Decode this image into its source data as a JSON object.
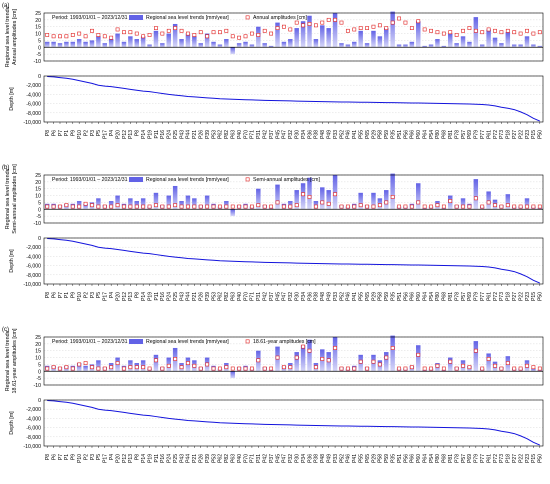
{
  "stations": [
    "P8",
    "P6",
    "P7",
    "P1",
    "P9",
    "P10",
    "P2",
    "P3",
    "P5",
    "P17",
    "P4",
    "P20",
    "P12",
    "P13",
    "P8",
    "P14",
    "P19",
    "P11",
    "P16",
    "P24",
    "P25",
    "P43",
    "P44",
    "P21",
    "P26",
    "P39",
    "P53",
    "P62",
    "P82",
    "P63",
    "P40",
    "P70",
    "P71",
    "P31",
    "P42",
    "P37",
    "P45",
    "P47",
    "P32",
    "P30",
    "P34",
    "P36",
    "P38",
    "P48",
    "P49",
    "P33",
    "P52",
    "P46",
    "P41",
    "P55",
    "P65",
    "P29",
    "P58",
    "P59",
    "P35",
    "P51",
    "P56",
    "P66",
    "P60",
    "P64",
    "P54",
    "P80",
    "P68",
    "P81",
    "P78",
    "P57",
    "P69",
    "P79",
    "P77",
    "P61",
    "P72",
    "P73",
    "P18",
    "P27",
    "P22",
    "P23",
    "P15",
    "P50"
  ],
  "depth_ticks": [
    "0",
    "-2,000",
    "-4,000",
    "-6,000",
    "-8,000",
    "-10,000"
  ],
  "depth_ylabel": "Depth [m]",
  "trend_yticks": [
    "25",
    "20",
    "15",
    "10",
    "5",
    "0",
    "-5",
    "-10"
  ],
  "ylabel_main": "Regional sea level trends",
  "period_text": "Period: 1993/01/01 – 2023/12/31",
  "legend_trend": "Regional sea level trends [mm/year]",
  "panels": [
    {
      "id": "a",
      "tag": "(a)",
      "ylabel2": "Annual amplitudes [cm]",
      "legend_amp": "Annual amplitudes [cm]"
    },
    {
      "id": "b",
      "tag": "(b)",
      "ylabel2": "Semi-annual amplitudes [cm]",
      "legend_amp": "Semi-annual amplitudes [cm]"
    },
    {
      "id": "c",
      "tag": "(c)",
      "ylabel2": "18.61-year amplitudes [cm]",
      "legend_amp": "18.61-year amplitudes [cm]"
    }
  ],
  "colors": {
    "bar_top": "#6262e6",
    "bar_bottom": "#d8d8f8",
    "marker": "#e02020",
    "depth_line": "#1414dc",
    "axis": "#000000",
    "grid": "#cfcfcf"
  },
  "chart_data": [
    {
      "type": "bar",
      "title": "(a)",
      "categories_ref": "stations",
      "series": [
        {
          "name": "Regional sea level trends [mm/year]",
          "values": [
            4,
            4,
            3,
            4,
            4,
            6,
            4,
            5,
            8,
            3,
            6,
            10,
            4,
            8,
            6,
            8,
            2,
            12,
            3,
            10,
            17,
            6,
            10,
            8,
            3,
            10,
            4,
            2,
            6,
            -5,
            3,
            4,
            2,
            15,
            3,
            1,
            18,
            4,
            6,
            14,
            19,
            23,
            6,
            16,
            14,
            25,
            3,
            2,
            4,
            12,
            3,
            12,
            8,
            14,
            26,
            2,
            2,
            4,
            19,
            1,
            2,
            6,
            1,
            10,
            3,
            8,
            4,
            22,
            2,
            13,
            7,
            3,
            11,
            2,
            2,
            8,
            2,
            1
          ]
        },
        {
          "name": "Annual amplitudes [cm]",
          "values": [
            9,
            8,
            8,
            8,
            9,
            10,
            8,
            12,
            9,
            8,
            7,
            13,
            11,
            11,
            10,
            8,
            9,
            14,
            10,
            12,
            14,
            12,
            10,
            9,
            11,
            8,
            11,
            11,
            12,
            8,
            7,
            8,
            10,
            9,
            12,
            10,
            14,
            15,
            13,
            18,
            16,
            17,
            16,
            18,
            20,
            20,
            18,
            12,
            13,
            14,
            14,
            15,
            16,
            14,
            18,
            21,
            18,
            14,
            19,
            13,
            12,
            11,
            10,
            11,
            9,
            12,
            14,
            12,
            11,
            13,
            12,
            11,
            12,
            11,
            10,
            12,
            10,
            11
          ]
        }
      ],
      "ylim": [
        -10,
        25
      ]
    },
    {
      "type": "bar",
      "title": "(b)",
      "categories_ref": "stations",
      "series": [
        {
          "name": "Regional sea level trends [mm/year]",
          "values": [
            4,
            4,
            3,
            4,
            4,
            6,
            4,
            5,
            8,
            3,
            6,
            10,
            4,
            8,
            6,
            8,
            2,
            12,
            3,
            10,
            17,
            6,
            10,
            8,
            3,
            10,
            4,
            2,
            6,
            -5,
            3,
            4,
            2,
            15,
            3,
            1,
            18,
            4,
            6,
            14,
            19,
            23,
            6,
            16,
            14,
            25,
            3,
            2,
            4,
            12,
            3,
            12,
            8,
            14,
            26,
            2,
            2,
            4,
            19,
            1,
            2,
            6,
            1,
            10,
            3,
            8,
            4,
            22,
            2,
            13,
            7,
            3,
            11,
            2,
            2,
            8,
            2,
            1
          ]
        },
        {
          "name": "Semi-annual amplitudes [cm]",
          "values": [
            2,
            2,
            2,
            3,
            2,
            2,
            4,
            3,
            2,
            2,
            2,
            3,
            2,
            2,
            2,
            2,
            2,
            3,
            2,
            2,
            3,
            2,
            2,
            2,
            2,
            2,
            2,
            2,
            2,
            2,
            2,
            2,
            2,
            3,
            2,
            2,
            5,
            2,
            2,
            3,
            11,
            9,
            2,
            5,
            4,
            11,
            2,
            2,
            2,
            3,
            2,
            2,
            3,
            5,
            9,
            2,
            2,
            2,
            5,
            2,
            2,
            3,
            2,
            6,
            2,
            2,
            2,
            8,
            2,
            5,
            3,
            2,
            3,
            2,
            2,
            2,
            2,
            2
          ]
        }
      ],
      "ylim": [
        -10,
        25
      ]
    },
    {
      "type": "bar",
      "title": "(c)",
      "categories_ref": "stations",
      "series": [
        {
          "name": "Regional sea level trends [mm/year]",
          "values": [
            4,
            4,
            3,
            4,
            4,
            6,
            4,
            5,
            8,
            3,
            6,
            10,
            4,
            8,
            6,
            8,
            2,
            12,
            3,
            10,
            17,
            6,
            10,
            8,
            3,
            10,
            4,
            2,
            6,
            -5,
            3,
            4,
            2,
            15,
            3,
            1,
            18,
            4,
            6,
            14,
            19,
            23,
            6,
            16,
            14,
            25,
            3,
            2,
            4,
            12,
            3,
            12,
            8,
            14,
            26,
            2,
            2,
            4,
            19,
            1,
            2,
            6,
            1,
            10,
            3,
            8,
            4,
            22,
            2,
            13,
            7,
            3,
            11,
            2,
            2,
            8,
            2,
            1
          ]
        },
        {
          "name": "18.61-year amplitudes [cm]",
          "values": [
            2,
            3,
            2,
            3,
            2,
            5,
            6,
            3,
            2,
            2,
            3,
            6,
            2,
            3,
            3,
            3,
            2,
            8,
            2,
            4,
            9,
            3,
            6,
            4,
            2,
            5,
            2,
            2,
            3,
            2,
            2,
            2,
            2,
            8,
            2,
            2,
            10,
            3,
            3,
            10,
            18,
            15,
            3,
            9,
            8,
            17,
            2,
            2,
            2,
            7,
            2,
            7,
            5,
            10,
            17,
            2,
            2,
            3,
            12,
            2,
            2,
            4,
            2,
            7,
            2,
            4,
            3,
            15,
            2,
            9,
            4,
            2,
            6,
            2,
            2,
            4,
            3,
            2
          ]
        }
      ],
      "ylim": [
        -10,
        25
      ]
    },
    {
      "type": "line",
      "title": "",
      "xlabel": "",
      "ylabel": "Depth [m]",
      "categories_ref": "stations",
      "values": [
        -100,
        -200,
        -350,
        -500,
        -700,
        -1000,
        -1300,
        -1600,
        -2000,
        -2200,
        -2300,
        -2500,
        -2700,
        -2900,
        -3100,
        -3300,
        -3400,
        -3600,
        -3800,
        -4000,
        -4150,
        -4300,
        -4450,
        -4550,
        -4650,
        -4750,
        -4850,
        -4950,
        -5000,
        -5050,
        -5100,
        -5150,
        -5200,
        -5250,
        -5300,
        -5330,
        -5360,
        -5390,
        -5420,
        -5450,
        -5480,
        -5510,
        -5540,
        -5570,
        -5600,
        -5620,
        -5640,
        -5660,
        -5680,
        -5700,
        -5720,
        -5740,
        -5760,
        -5780,
        -5800,
        -5820,
        -5840,
        -5860,
        -5880,
        -5900,
        -5920,
        -5950,
        -5980,
        -6000,
        -6030,
        -6060,
        -6100,
        -6150,
        -6200,
        -6300,
        -6500,
        -6800,
        -7000,
        -7300,
        -7800,
        -8400,
        -9200,
        -9800
      ],
      "ylim": [
        -10000,
        0
      ]
    }
  ]
}
